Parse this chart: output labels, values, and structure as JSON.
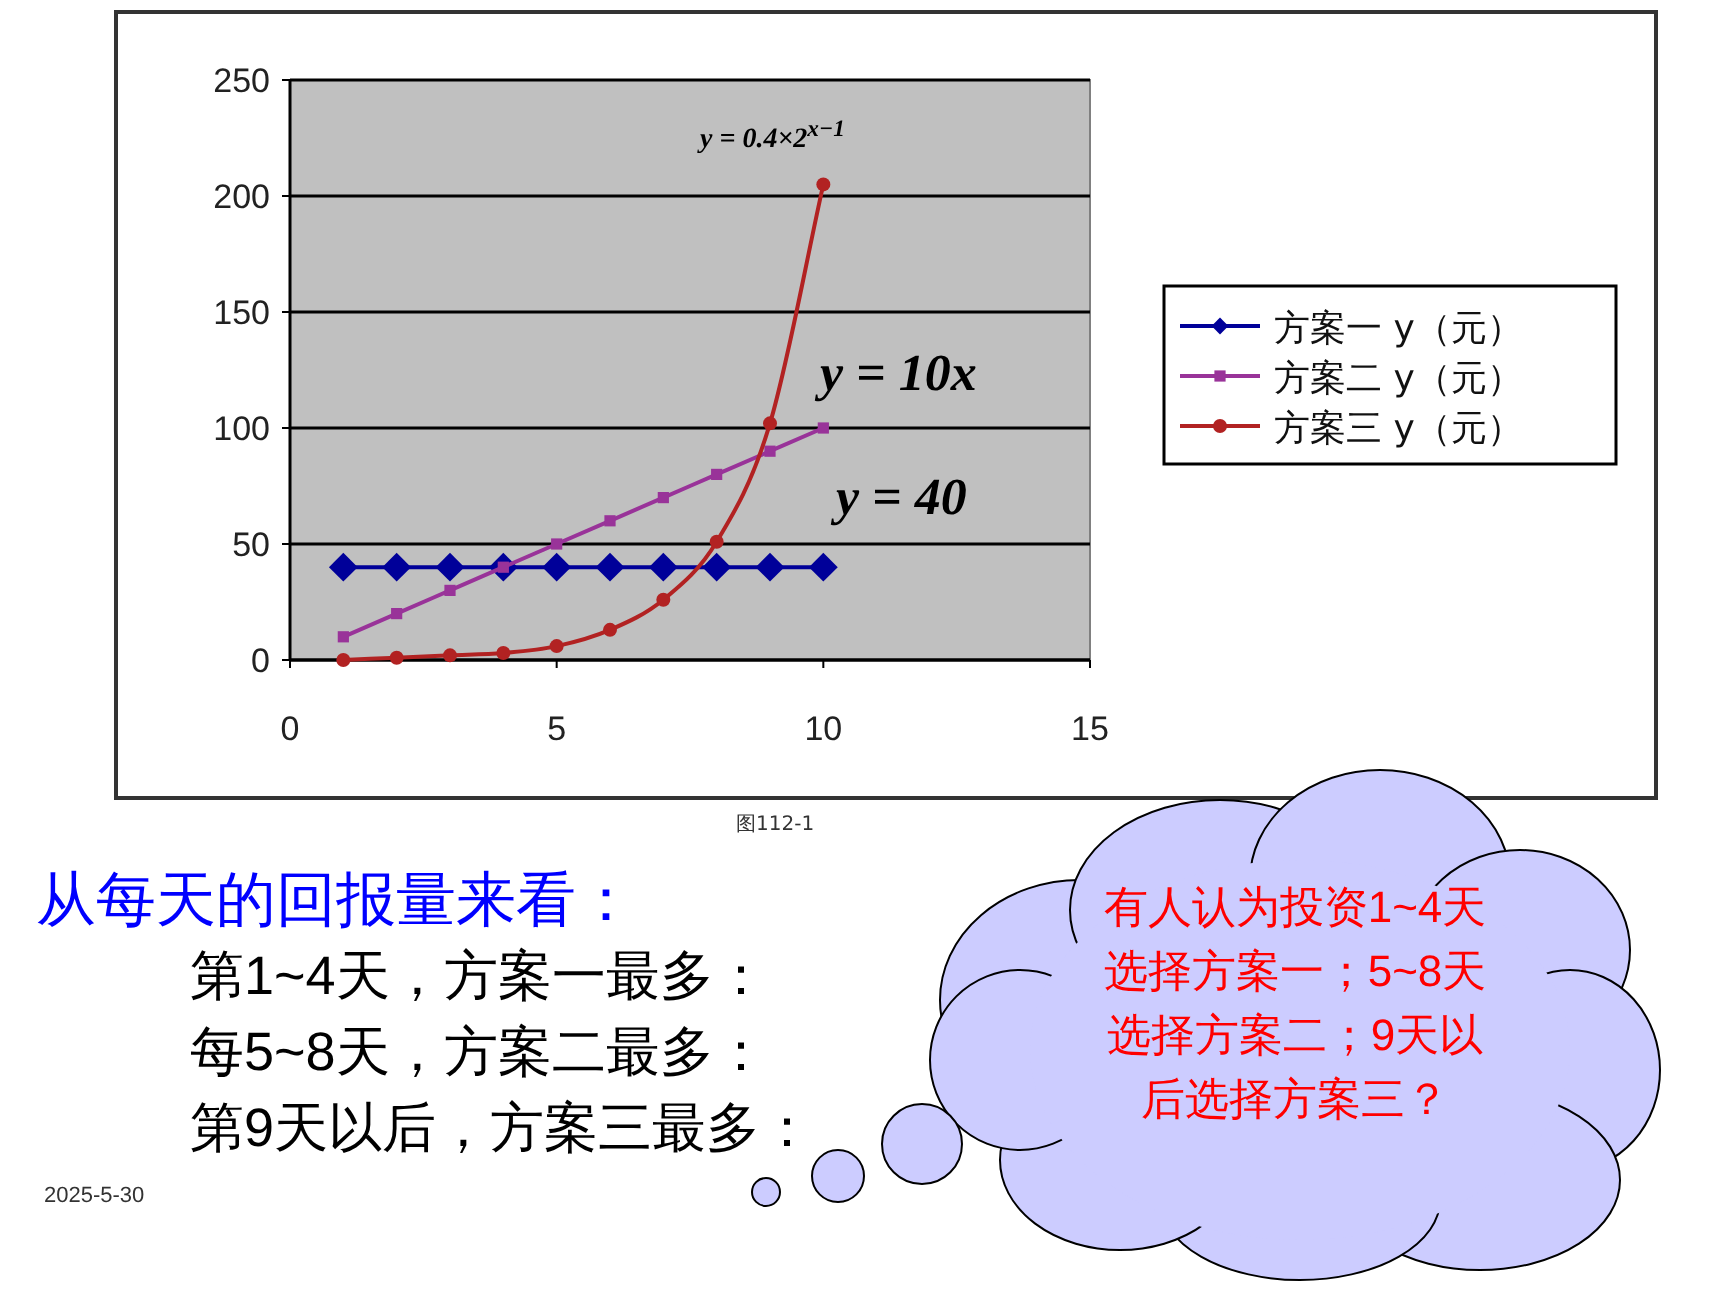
{
  "chart_data": {
    "type": "line",
    "x": [
      1,
      2,
      3,
      4,
      5,
      6,
      7,
      8,
      9,
      10
    ],
    "series": [
      {
        "name": "方案一 y（元）",
        "color": "#000099",
        "marker": "diamond",
        "values": [
          40,
          40,
          40,
          40,
          40,
          40,
          40,
          40,
          40,
          40
        ]
      },
      {
        "name": "方案二 y（元）",
        "color": "#993399",
        "marker": "square",
        "values": [
          10,
          20,
          30,
          40,
          50,
          60,
          70,
          80,
          90,
          100
        ]
      },
      {
        "name": "方案三 y（元）",
        "color": "#b22222",
        "marker": "circle",
        "values": [
          0,
          1,
          2,
          3,
          6,
          13,
          26,
          51,
          102,
          205
        ]
      }
    ],
    "xlim": [
      0,
      15
    ],
    "xticks": [
      0,
      5,
      10,
      15
    ],
    "ylim": [
      0,
      250
    ],
    "yticks": [
      0,
      50,
      100,
      150,
      200,
      250
    ],
    "grid": "y",
    "legend": "right",
    "annotations": [
      "y = 0.4×2$^{x−1}$",
      "y = 10x",
      "y = 40",
      "图112-1",
      "从每天的回报量来看：",
      "第1~4天，方案一最多：",
      "每5~8天，方案二最多：",
      "第9天以后，方案三最多：",
      "有人认为投资1~4天选择方案一；5~8天选择方案二；9天以后选择方案三？",
      "2025-5-30"
    ]
  }
}
